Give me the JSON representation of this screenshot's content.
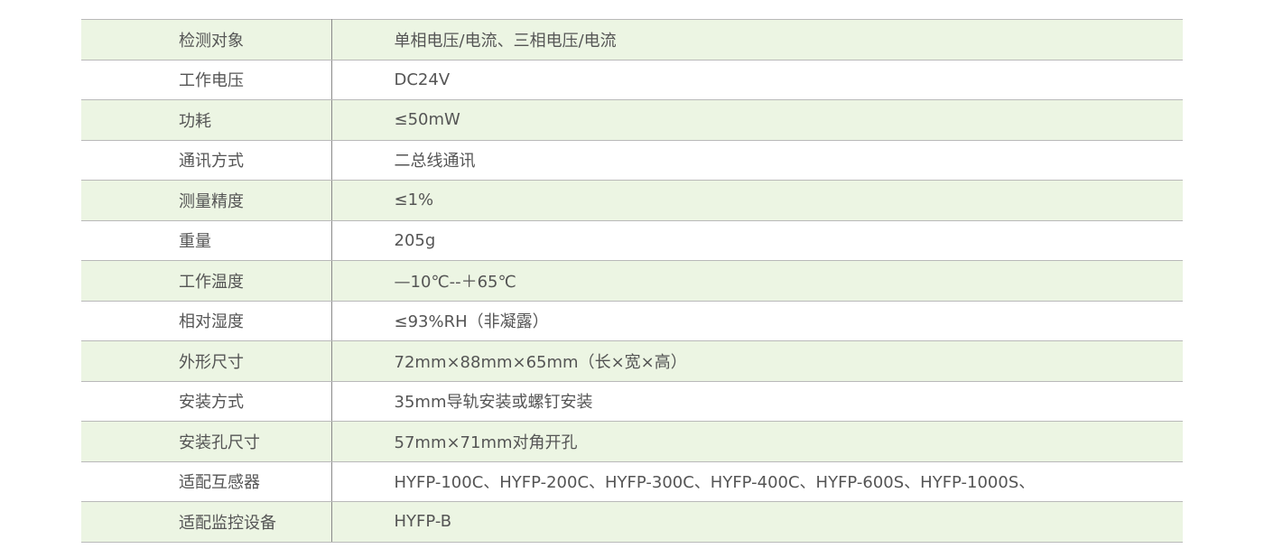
{
  "rows": [
    {
      "label": "检测对象",
      "value": "单相电压/电流、三相电压/电流"
    },
    {
      "label": "工作电压",
      "value": "DC24V"
    },
    {
      "label": "功耗",
      "value": "≤50mW"
    },
    {
      "label": "通讯方式",
      "value": "二总线通讯"
    },
    {
      "label": "测量精度",
      "value": "≤1%"
    },
    {
      "label": "重量",
      "value": "205g"
    },
    {
      "label": "工作温度",
      "value": "—10℃--＋65℃"
    },
    {
      "label": "相对湿度",
      "value": "≤93%RH（非凝露）"
    },
    {
      "label": "外形尺寸",
      "value": "72mm×88mm×65mm（长×宽×高）"
    },
    {
      "label": "安装方式",
      "value": "35mm导轨安装或螺钉安装"
    },
    {
      "label": "安装孔尺寸",
      "value": "57mm×71mm对角开孔"
    },
    {
      "label": "适配互感器",
      "value": "HYFP-100C、HYFP-200C、HYFP-300C、HYFP-400C、HYFP-600S、HYFP-1000S、"
    },
    {
      "label": "适配监控设备",
      "value": "HYFP-B"
    }
  ],
  "colors": {
    "row_alt": "#ecf5e3",
    "text": "#555555",
    "border": "#b9b9b9"
  }
}
